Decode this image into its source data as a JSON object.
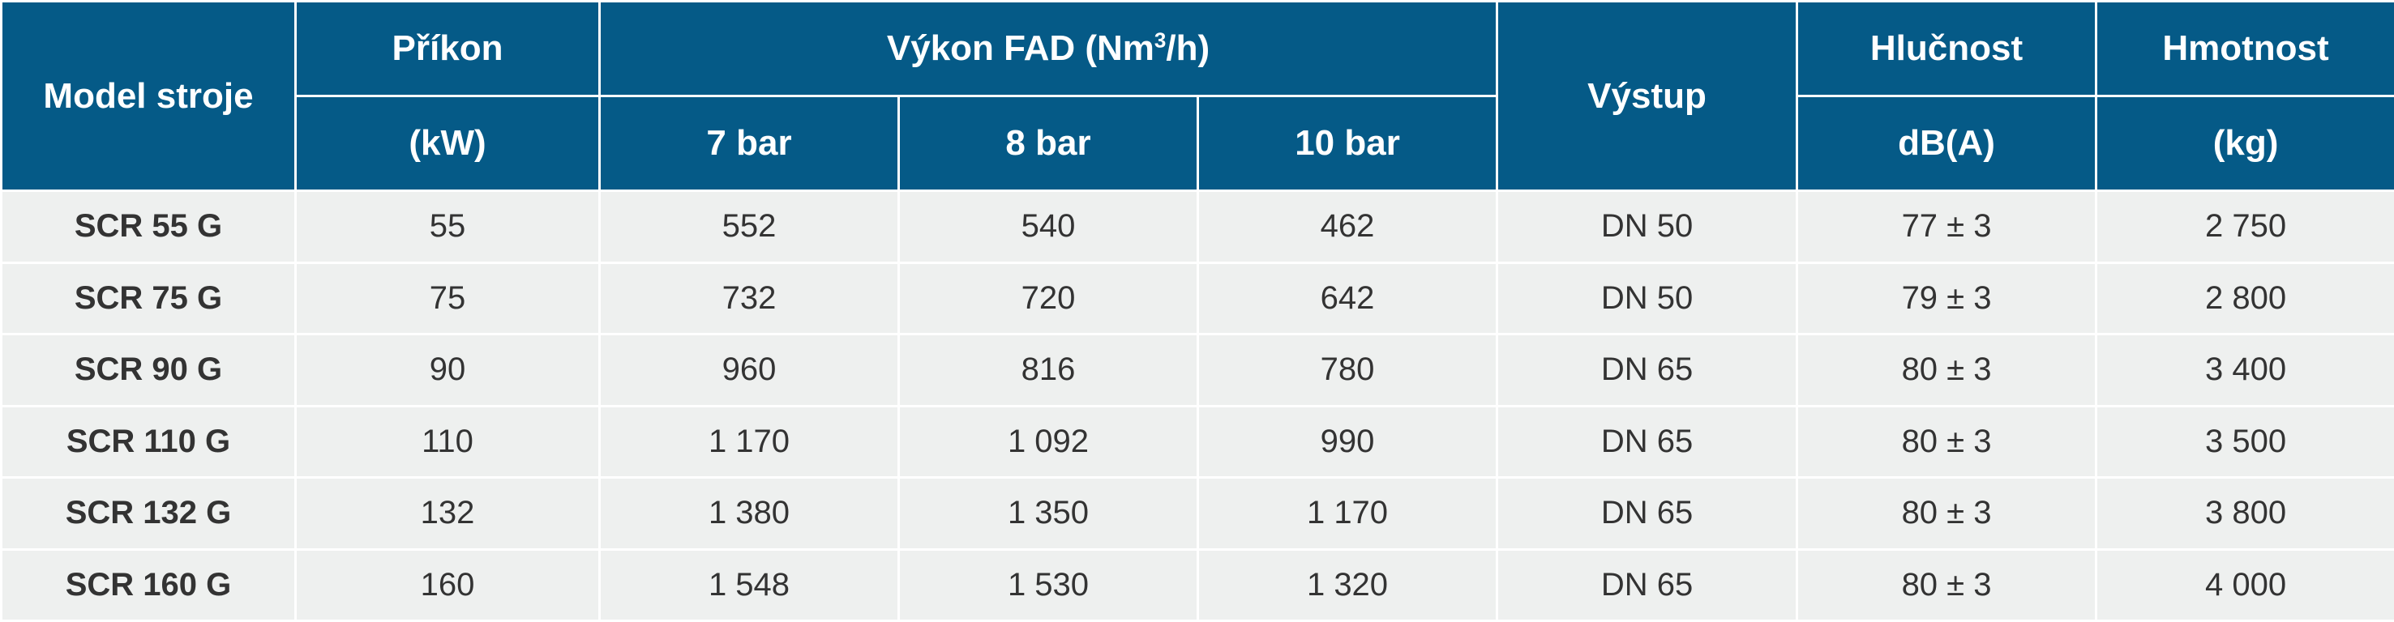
{
  "header": {
    "model": "Model stroje",
    "power": "Příkon",
    "power_unit": "(kW)",
    "fad": "Výkon FAD (Nm",
    "fad_sup": "3",
    "fad_tail": "/h)",
    "fad_7": "7 bar",
    "fad_8": "8 bar",
    "fad_10": "10 bar",
    "outlet": "Výstup",
    "noise": "Hlučnost",
    "noise_unit": "dB(A)",
    "weight": "Hmotnost",
    "weight_unit": "(kg)"
  },
  "rows": [
    {
      "model": "SCR 55 G",
      "power": "55",
      "fad7": "552",
      "fad8": "540",
      "fad10": "462",
      "outlet": "DN 50",
      "noise": "77 ± 3",
      "weight": "2 750"
    },
    {
      "model": "SCR 75 G",
      "power": "75",
      "fad7": "732",
      "fad8": "720",
      "fad10": "642",
      "outlet": "DN 50",
      "noise": "79 ± 3",
      "weight": "2 800"
    },
    {
      "model": "SCR 90 G",
      "power": "90",
      "fad7": "960",
      "fad8": "816",
      "fad10": "780",
      "outlet": "DN 65",
      "noise": "80 ± 3",
      "weight": "3 400"
    },
    {
      "model": "SCR 110 G",
      "power": "110",
      "fad7": "1 170",
      "fad8": "1 092",
      "fad10": "990",
      "outlet": "DN 65",
      "noise": "80 ± 3",
      "weight": "3 500"
    },
    {
      "model": "SCR 132 G",
      "power": "132",
      "fad7": "1 380",
      "fad8": "1 350",
      "fad10": "1 170",
      "outlet": "DN 65",
      "noise": "80 ± 3",
      "weight": "3 800"
    },
    {
      "model": "SCR 160 G",
      "power": "160",
      "fad7": "1 548",
      "fad8": "1 530",
      "fad10": "1 320",
      "outlet": "DN 65",
      "noise": "80 ± 3",
      "weight": "4 000"
    }
  ],
  "colors": {
    "header_bg": "#055a87",
    "body_bg": "#eef0ef",
    "text": "#333333"
  }
}
